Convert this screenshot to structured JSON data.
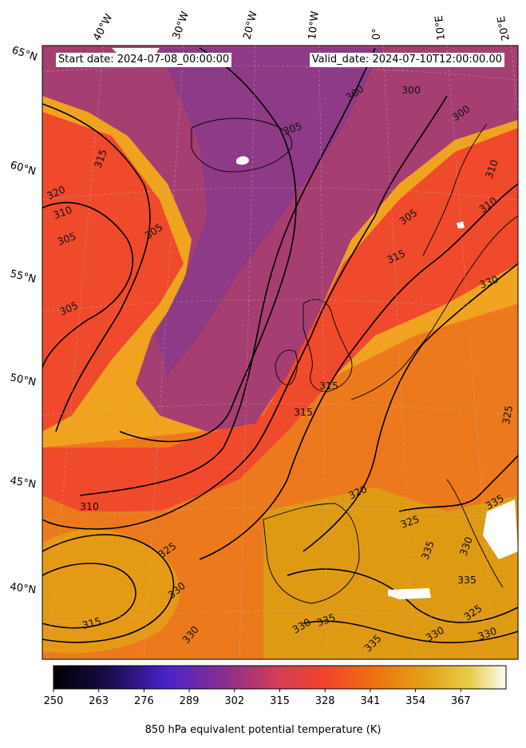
{
  "header": {
    "start_date": "Start date: 2024-07-08_00:00:00",
    "valid_date": "Valid_date: 2024-07-10T12:00:00.00"
  },
  "longitude_labels": [
    "40°W",
    "30°W",
    "20°W",
    "10°W",
    "0°",
    "10°E",
    "20°E"
  ],
  "latitude_labels": [
    "65°N",
    "60°N",
    "55°N",
    "50°N",
    "45°N",
    "40°N"
  ],
  "contour_labels": [
    "300",
    "300",
    "300",
    "305",
    "315",
    "320",
    "310",
    "305",
    "305",
    "305",
    "305",
    "310",
    "310",
    "315",
    "315",
    "330",
    "325",
    "315",
    "320",
    "325",
    "335",
    "335",
    "310",
    "325",
    "330",
    "330",
    "315",
    "330",
    "335",
    "330",
    "335",
    "330",
    "325",
    "330",
    "335"
  ],
  "colorbar": {
    "ticks": [
      "250",
      "263",
      "276",
      "289",
      "302",
      "315",
      "328",
      "341",
      "354",
      "367"
    ],
    "label": "850 hPa equivalent potential temperature (K)",
    "colors": [
      "#000004",
      "#1b0c41",
      "#4a0c6b",
      "#781c6d",
      "#a52c60",
      "#cf4446",
      "#ed6925",
      "#fb9b06",
      "#f7d13d",
      "#fcffa4"
    ]
  }
}
